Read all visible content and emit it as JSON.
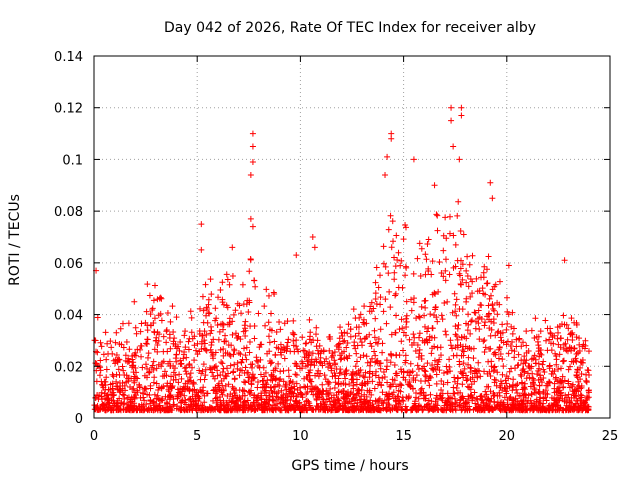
{
  "chart_data": {
    "type": "scatter",
    "title": "Day 042 of 2026, Rate Of TEC Index for receiver alby",
    "xlabel": "GPS time / hours",
    "ylabel": "ROTI / TECUs",
    "xlim": [
      0,
      25
    ],
    "ylim": [
      0,
      0.14
    ],
    "xticks": [
      0,
      5,
      10,
      15,
      20,
      25
    ],
    "xtick_labels": [
      "0",
      "5",
      "10",
      "15",
      "20",
      "25"
    ],
    "yticks": [
      0,
      0.02,
      0.04,
      0.06,
      0.08,
      0.1,
      0.12,
      0.14
    ],
    "ytick_labels": [
      "0",
      "0.02",
      "0.04",
      "0.06",
      "0.08",
      "0.1",
      "0.12",
      "0.14"
    ],
    "grid": true,
    "marker": "plus",
    "color": "#ff0000",
    "envelope": {
      "x": [
        0,
        0.2,
        0.5,
        1.0,
        1.5,
        2.0,
        2.5,
        3.0,
        3.5,
        4.0,
        4.5,
        5.0,
        5.5,
        6.0,
        6.5,
        7.0,
        7.5,
        7.8,
        8.0,
        8.5,
        9.0,
        9.5,
        10.0,
        10.5,
        11.0,
        11.5,
        12.0,
        12.5,
        13.0,
        13.5,
        14.0,
        14.4,
        14.8,
        15.2,
        15.6,
        16.0,
        16.5,
        17.0,
        17.4,
        17.8,
        18.2,
        18.6,
        19.0,
        19.4,
        19.8,
        20.2,
        20.6,
        21.0,
        21.5,
        22.0,
        22.5,
        23.0,
        23.5,
        24.0
      ],
      "y": [
        0.03,
        0.04,
        0.035,
        0.03,
        0.035,
        0.04,
        0.045,
        0.05,
        0.045,
        0.035,
        0.035,
        0.045,
        0.05,
        0.05,
        0.055,
        0.045,
        0.06,
        0.065,
        0.05,
        0.045,
        0.04,
        0.035,
        0.03,
        0.035,
        0.03,
        0.03,
        0.035,
        0.04,
        0.045,
        0.05,
        0.065,
        0.075,
        0.07,
        0.065,
        0.06,
        0.065,
        0.07,
        0.075,
        0.08,
        0.075,
        0.06,
        0.055,
        0.065,
        0.055,
        0.045,
        0.04,
        0.035,
        0.035,
        0.035,
        0.035,
        0.035,
        0.04,
        0.035,
        0.03
      ],
      "floor": 0.003
    },
    "notable_points": [
      {
        "x": 0.1,
        "y": 0.057
      },
      {
        "x": 5.2,
        "y": 0.075
      },
      {
        "x": 5.2,
        "y": 0.065
      },
      {
        "x": 6.7,
        "y": 0.066
      },
      {
        "x": 7.7,
        "y": 0.11
      },
      {
        "x": 7.7,
        "y": 0.105
      },
      {
        "x": 7.7,
        "y": 0.099
      },
      {
        "x": 7.6,
        "y": 0.094
      },
      {
        "x": 7.6,
        "y": 0.077
      },
      {
        "x": 7.7,
        "y": 0.074
      },
      {
        "x": 9.8,
        "y": 0.063
      },
      {
        "x": 10.6,
        "y": 0.07
      },
      {
        "x": 10.7,
        "y": 0.066
      },
      {
        "x": 14.4,
        "y": 0.11
      },
      {
        "x": 14.4,
        "y": 0.108
      },
      {
        "x": 14.2,
        "y": 0.101
      },
      {
        "x": 14.1,
        "y": 0.094
      },
      {
        "x": 15.5,
        "y": 0.1
      },
      {
        "x": 16.5,
        "y": 0.09
      },
      {
        "x": 17.3,
        "y": 0.12
      },
      {
        "x": 17.3,
        "y": 0.115
      },
      {
        "x": 17.8,
        "y": 0.12
      },
      {
        "x": 17.8,
        "y": 0.117
      },
      {
        "x": 17.4,
        "y": 0.105
      },
      {
        "x": 17.7,
        "y": 0.1
      },
      {
        "x": 19.2,
        "y": 0.091
      },
      {
        "x": 19.3,
        "y": 0.085
      },
      {
        "x": 20.1,
        "y": 0.059
      },
      {
        "x": 22.8,
        "y": 0.061
      }
    ]
  }
}
